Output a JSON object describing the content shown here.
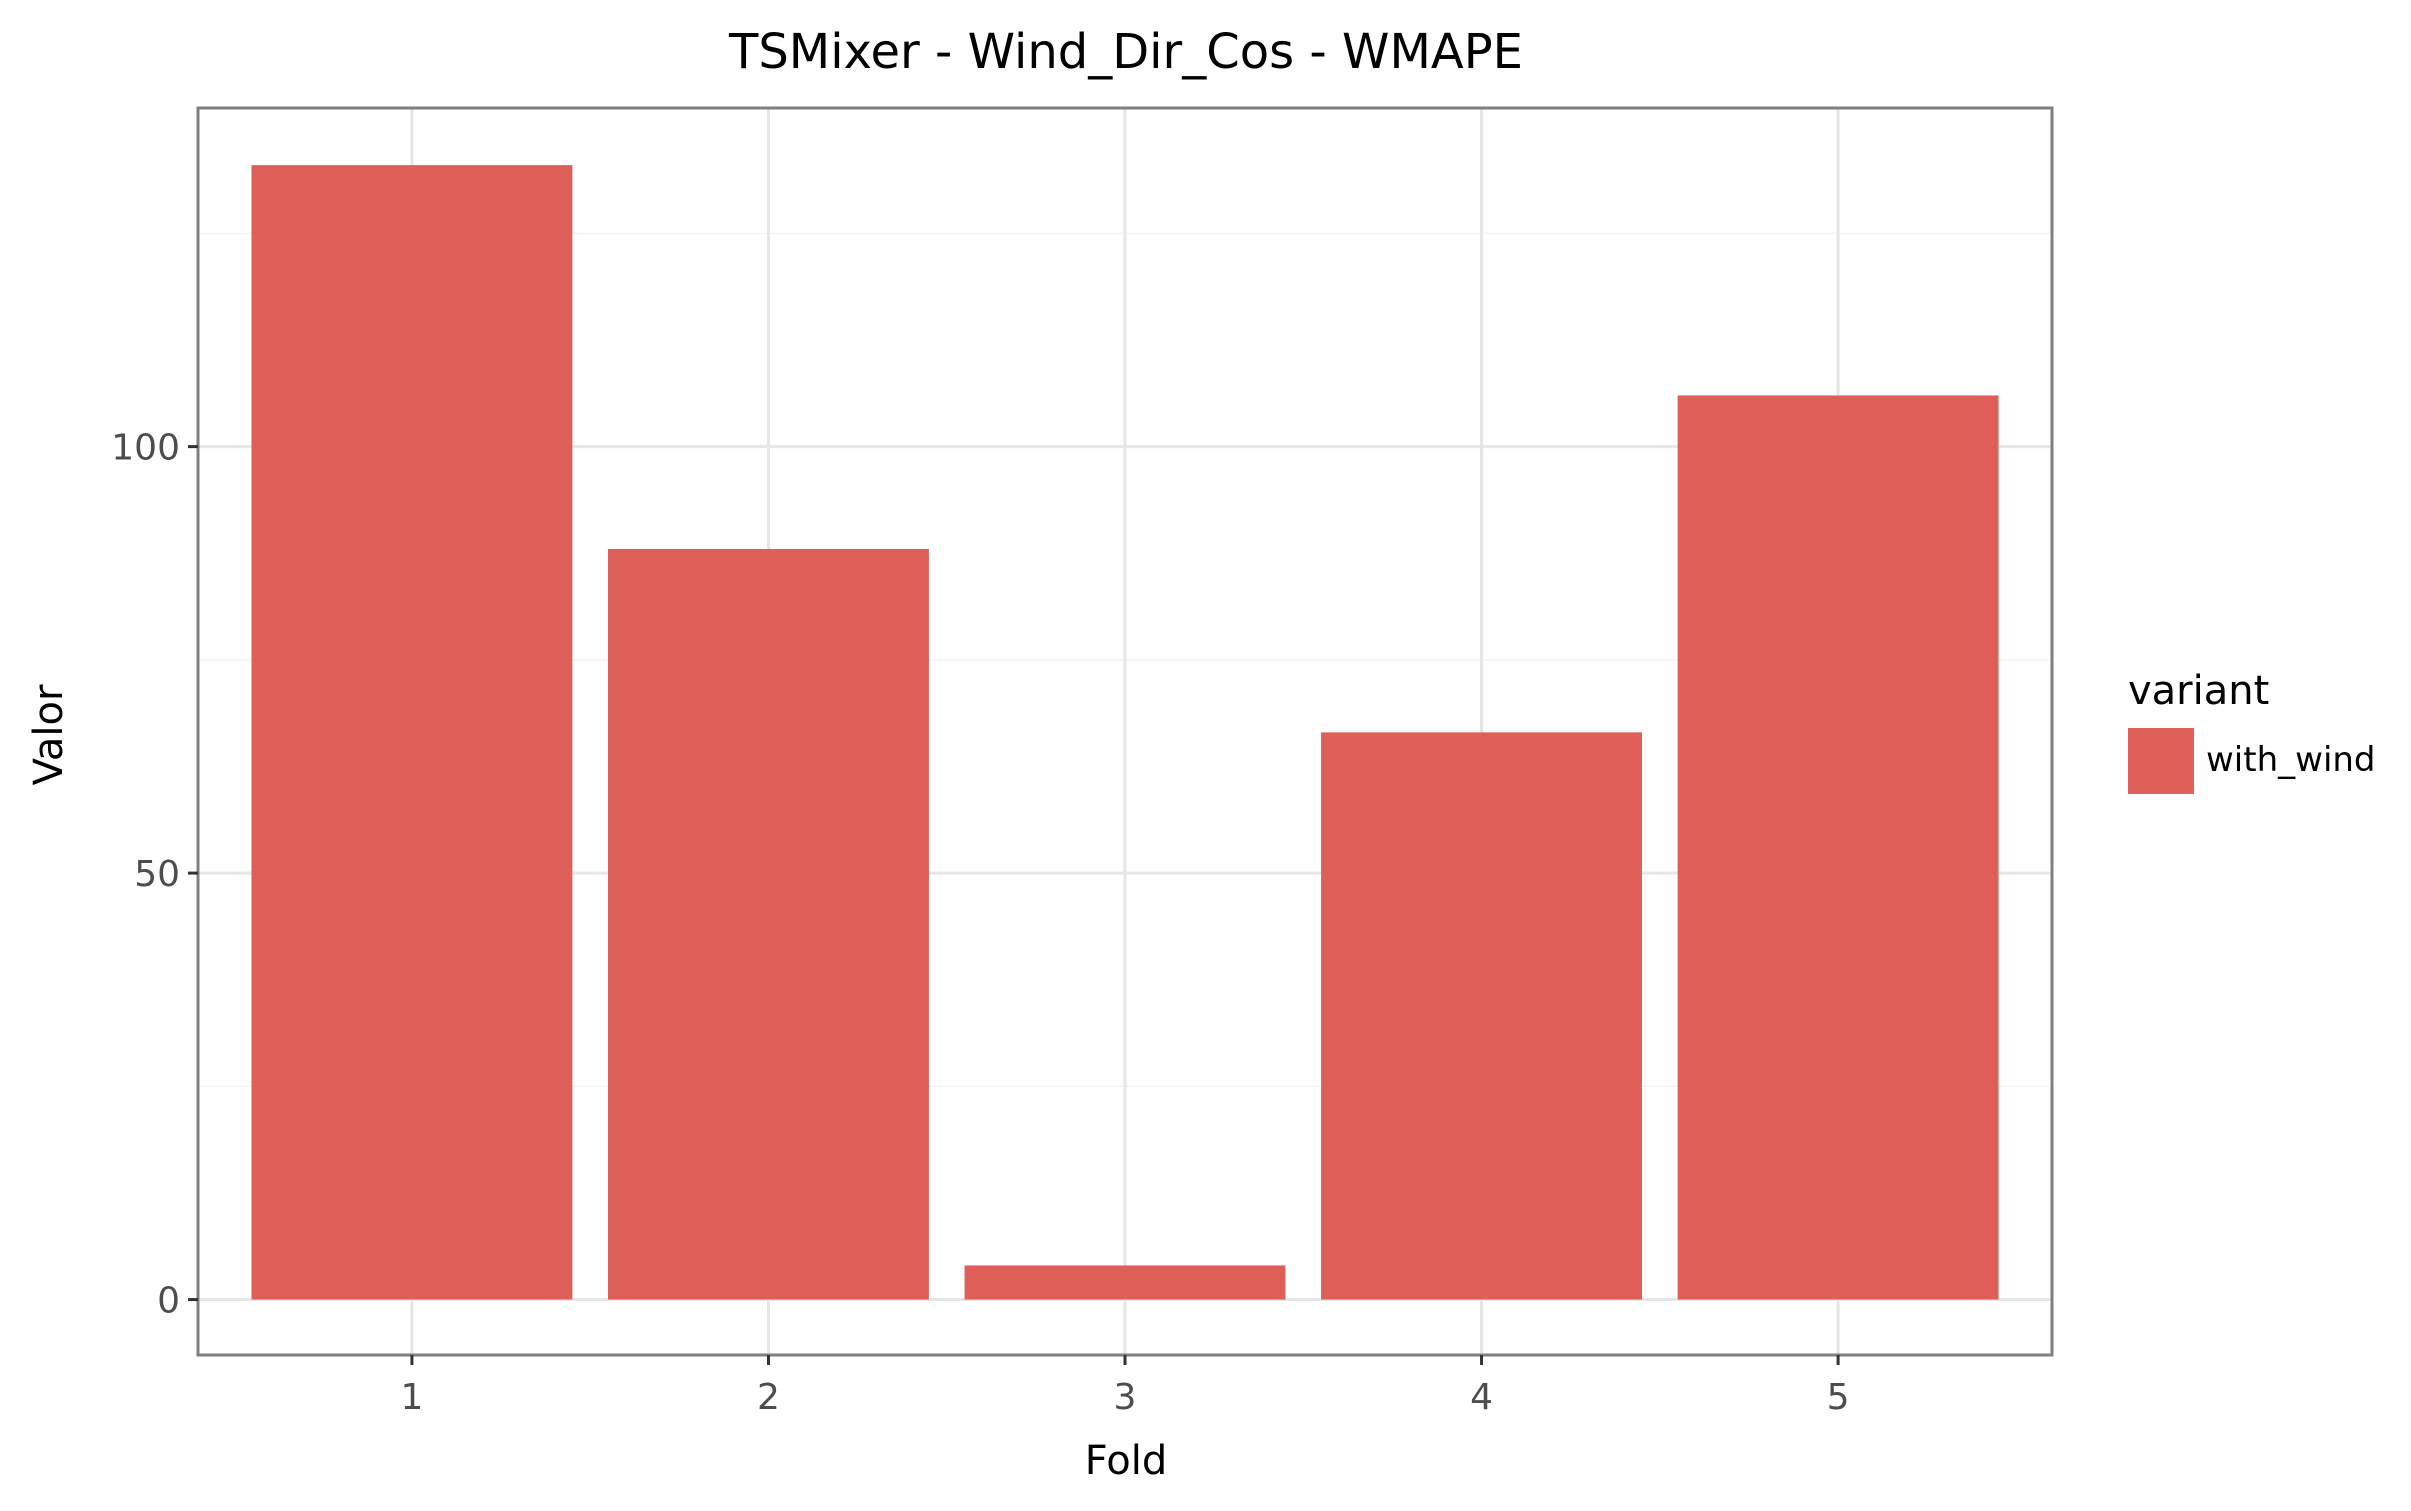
{
  "chart_data": {
    "type": "bar",
    "title": "TSMixer - Wind_Dir_Cos - WMAPE",
    "xlabel": "Fold",
    "ylabel": "Valor",
    "categories": [
      "1",
      "2",
      "3",
      "4",
      "5"
    ],
    "series": [
      {
        "name": "with_wind",
        "values": [
          133,
          88,
          4,
          66.5,
          106
        ],
        "color": "#dd5f57"
      }
    ],
    "ylim": [
      -6.5,
      139.7
    ],
    "yticks": [
      0,
      50,
      100
    ],
    "ytick_labels": [
      "0",
      "50",
      "100"
    ],
    "grid": true,
    "legend": {
      "title": "variant",
      "position": "right"
    }
  }
}
